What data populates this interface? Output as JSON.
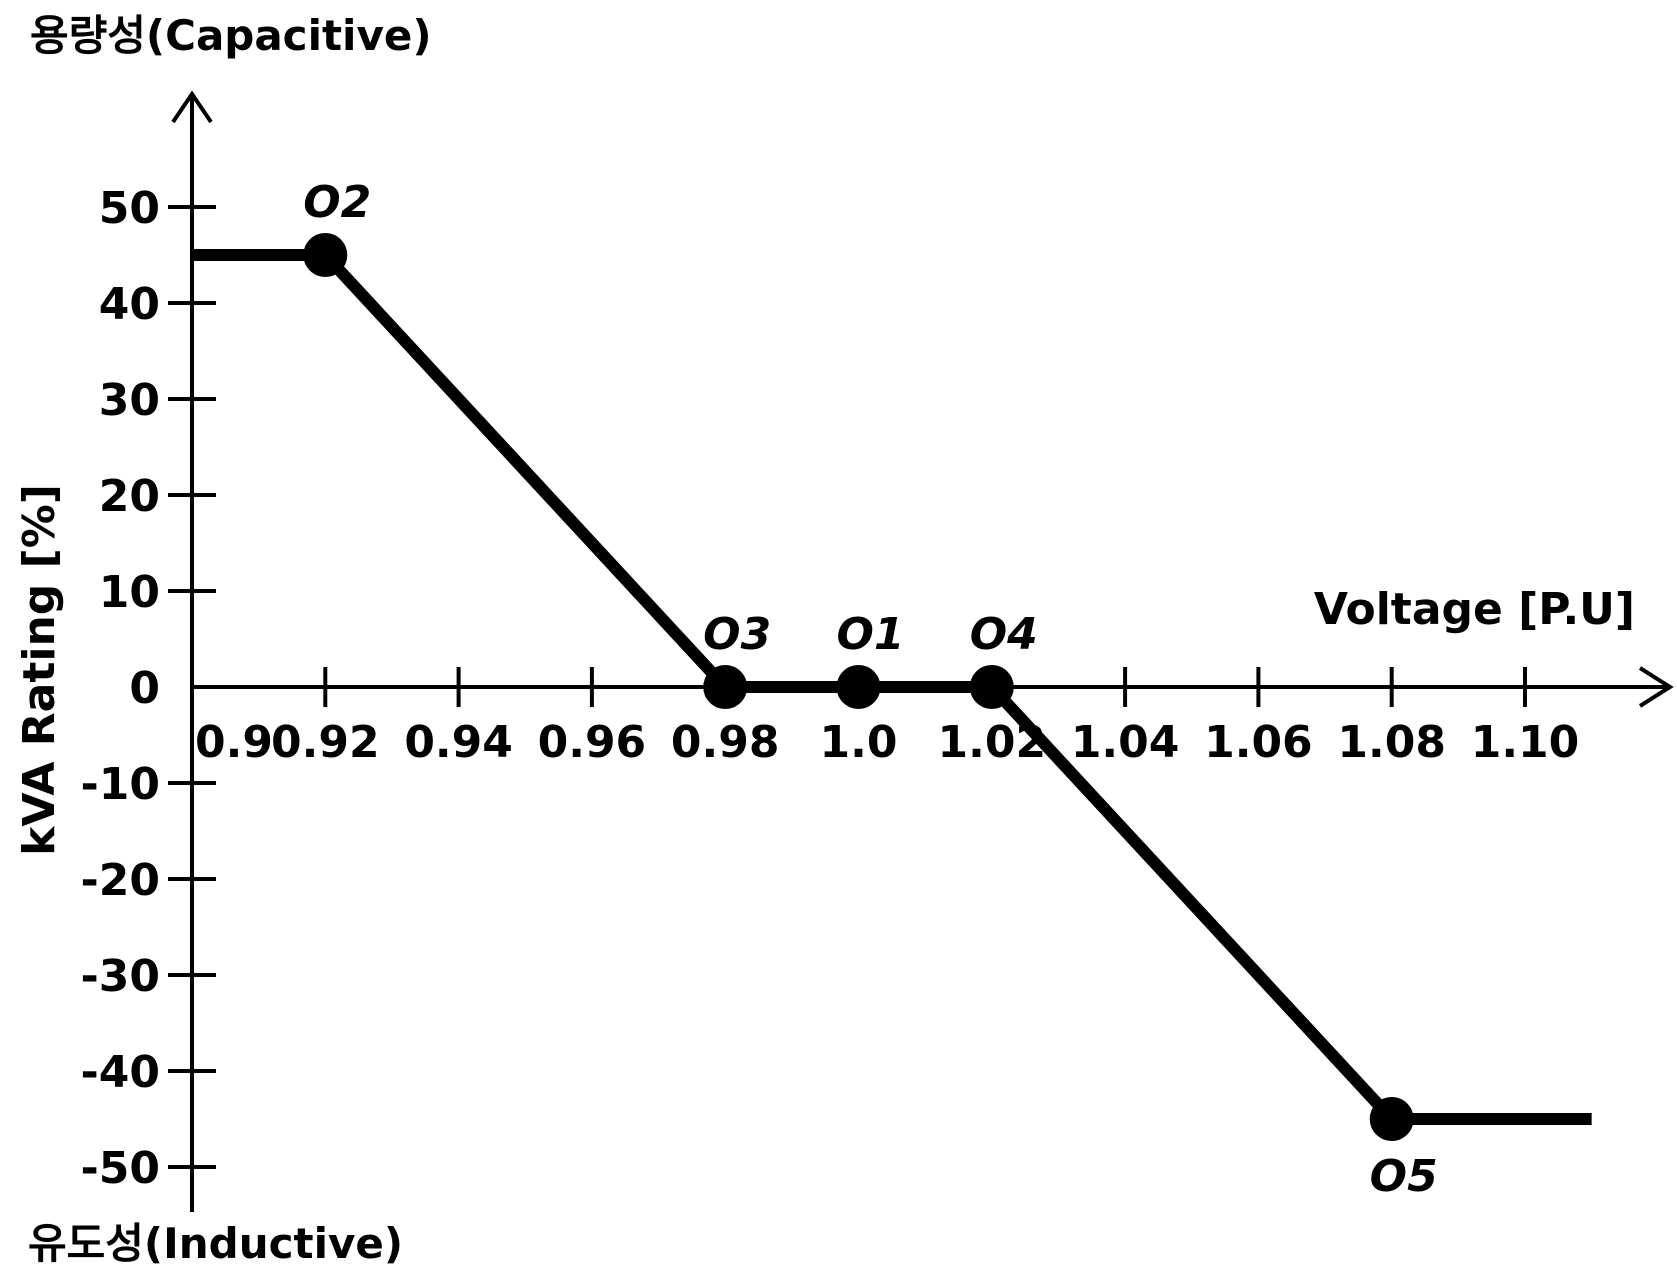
{
  "chart_data": {
    "type": "line",
    "top_label": "용량성(Capacitive)",
    "bottom_label": "유도성(Inductive)",
    "xlabel": "Voltage [P.U]",
    "ylabel": "kVA Rating [%]",
    "x_ticks": [
      0.9,
      0.92,
      0.94,
      0.96,
      0.98,
      1.0,
      1.02,
      1.04,
      1.06,
      1.08,
      1.1
    ],
    "x_tick_labels": [
      "0.9",
      "0.92",
      "0.94",
      "0.96",
      "0.98",
      "1.0",
      "1.02",
      "1.04",
      "1.06",
      "1.08",
      "1.10"
    ],
    "y_ticks": [
      50,
      40,
      30,
      20,
      10,
      0,
      -10,
      -20,
      -30,
      -40,
      -50
    ],
    "y_tick_labels": [
      "50",
      "40",
      "30",
      "20",
      "10",
      "0",
      "-10",
      "-20",
      "-30",
      "-40",
      "-50"
    ],
    "xlim": [
      0.9,
      1.11
    ],
    "ylim": [
      -50,
      50
    ],
    "grid": false,
    "line_color": "#000000",
    "series": [
      {
        "x": [
          0.9,
          0.92,
          0.98,
          1.0,
          1.02,
          1.08,
          1.11
        ],
        "y": [
          45,
          45,
          0,
          0,
          0,
          -45,
          -45
        ]
      }
    ],
    "points": [
      {
        "label": "O2",
        "x": 0.92,
        "y": 45
      },
      {
        "label": "O3",
        "x": 0.98,
        "y": 0
      },
      {
        "label": "O1",
        "x": 1.0,
        "y": 0
      },
      {
        "label": "O4",
        "x": 1.02,
        "y": 0
      },
      {
        "label": "O5",
        "x": 1.08,
        "y": -45
      }
    ]
  }
}
